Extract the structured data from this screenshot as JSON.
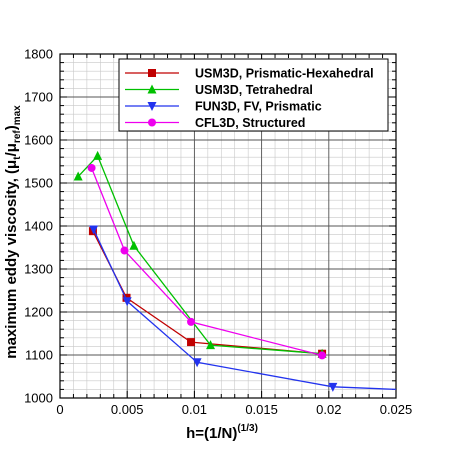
{
  "chart_data": {
    "type": "line",
    "title": "",
    "xlabel": {
      "main": "h=(1/N)",
      "superscript": "(1/3)"
    },
    "ylabel": {
      "main": "maximum eddy viscosity, (μ",
      "sub1": "t",
      "mid": "/μ",
      "sub2": "ref",
      "end": ")",
      "sub3": "max"
    },
    "xlim": [
      0,
      0.025
    ],
    "ylim": [
      1000,
      1800
    ],
    "x_major_ticks": [
      0,
      0.005,
      0.01,
      0.015,
      0.02,
      0.025
    ],
    "x_tick_labels": [
      "0",
      "0.005",
      "0.01",
      "0.015",
      "0.02",
      "0.025"
    ],
    "y_major_ticks": [
      1000,
      1100,
      1200,
      1300,
      1400,
      1500,
      1600,
      1700,
      1800
    ],
    "y_tick_labels": [
      "1000",
      "1100",
      "1200",
      "1300",
      "1400",
      "1500",
      "1600",
      "1700",
      "1800"
    ],
    "grid": true,
    "legend_position": "top-right",
    "series": [
      {
        "name": "USM3D, Prismatic-Hexahedral",
        "color": "#c00000",
        "marker": "square",
        "x": [
          0.00245,
          0.00495,
          0.00975,
          0.0195
        ],
        "y": [
          1388,
          1233,
          1130,
          1103
        ]
      },
      {
        "name": "USM3D, Tetrahedral",
        "color": "#00c000",
        "marker": "triangle-up",
        "x": [
          0.00135,
          0.0028,
          0.0055,
          0.0112,
          0.0195
        ],
        "y": [
          1515,
          1563,
          1354,
          1123,
          1103
        ]
      },
      {
        "name": "FUN3D, FV, Prismatic",
        "color": "#2233ee",
        "marker": "triangle-down",
        "x": [
          0.0025,
          0.005,
          0.0102,
          0.0203,
          0.025
        ],
        "y": [
          1392,
          1225,
          1083,
          1026,
          1020
        ]
      },
      {
        "name": "CFL3D, Structured",
        "color": "#ee00ee",
        "marker": "circle",
        "x": [
          0.00235,
          0.0048,
          0.00975,
          0.0195
        ],
        "y": [
          1535,
          1343,
          1177,
          1099
        ]
      }
    ]
  }
}
